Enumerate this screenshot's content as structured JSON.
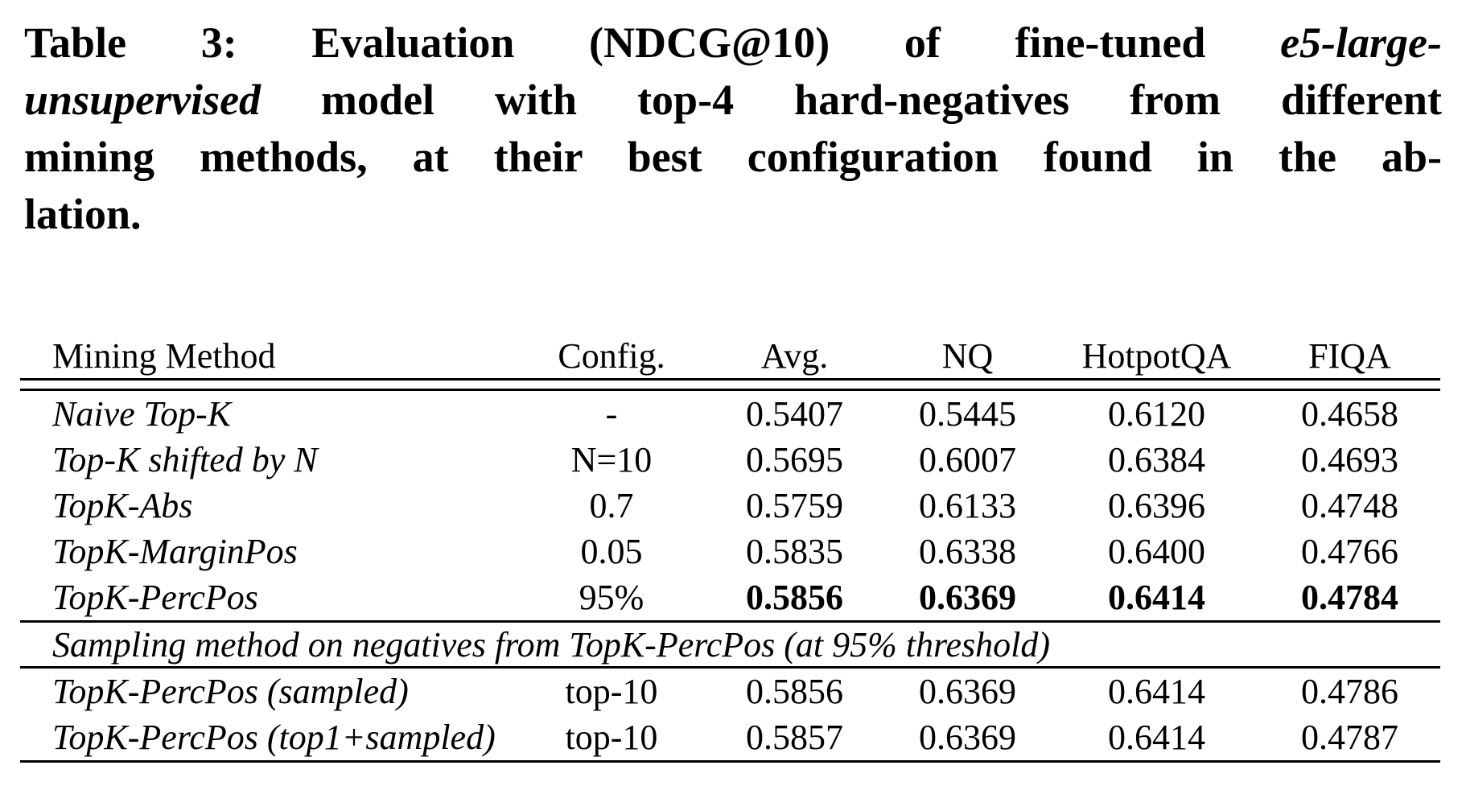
{
  "colors": {
    "background": "#ffffff",
    "text": "#000000",
    "rule": "#000000"
  },
  "caption": {
    "lines": [
      {
        "justify": true,
        "segments": [
          {
            "text": "Table 3: Evaluation (NDCG@10) of fine-tuned ",
            "italic": false
          },
          {
            "text": "e5-large-",
            "italic": true
          }
        ]
      },
      {
        "justify": true,
        "segments": [
          {
            "text": "unsupervised",
            "italic": true
          },
          {
            "text": " model with top-4 hard-negatives from different",
            "italic": false
          }
        ]
      },
      {
        "justify": true,
        "segments": [
          {
            "text": "mining methods, at their best configuration found in the ab-",
            "italic": false
          }
        ]
      },
      {
        "justify": false,
        "segments": [
          {
            "text": "lation.",
            "italic": false
          }
        ]
      }
    ]
  },
  "table": {
    "columns": [
      "Mining Method",
      "Config.",
      "Avg.",
      "NQ",
      "HotpotQA",
      "FIQA"
    ],
    "rows": [
      {
        "method": "Naive Top-K",
        "config": "-",
        "values": [
          "0.5407",
          "0.5445",
          "0.6120",
          "0.4658"
        ],
        "bold_values": false
      },
      {
        "method": "Top-K shifted by N",
        "config": "N=10",
        "values": [
          "0.5695",
          "0.6007",
          "0.6384",
          "0.4693"
        ],
        "bold_values": false
      },
      {
        "method": "TopK-Abs",
        "config": "0.7",
        "values": [
          "0.5759",
          "0.6133",
          "0.6396",
          "0.4748"
        ],
        "bold_values": false
      },
      {
        "method": "TopK-MarginPos",
        "config": "0.05",
        "values": [
          "0.5835",
          "0.6338",
          "0.6400",
          "0.4766"
        ],
        "bold_values": false
      },
      {
        "method": "TopK-PercPos",
        "config": "95%",
        "values": [
          "0.5856",
          "0.6369",
          "0.6414",
          "0.4784"
        ],
        "bold_values": true
      }
    ],
    "section_row": "Sampling method on negatives from TopK-PercPos (at 95% threshold)",
    "rows2": [
      {
        "method": "TopK-PercPos (sampled)",
        "config": "top-10",
        "values": [
          "0.5856",
          "0.6369",
          "0.6414",
          "0.4786"
        ],
        "bold_values": false
      },
      {
        "method": "TopK-PercPos (top1+sampled)",
        "config": "top-10",
        "values": [
          "0.5857",
          "0.6369",
          "0.6414",
          "0.4787"
        ],
        "bold_values": false
      }
    ]
  }
}
